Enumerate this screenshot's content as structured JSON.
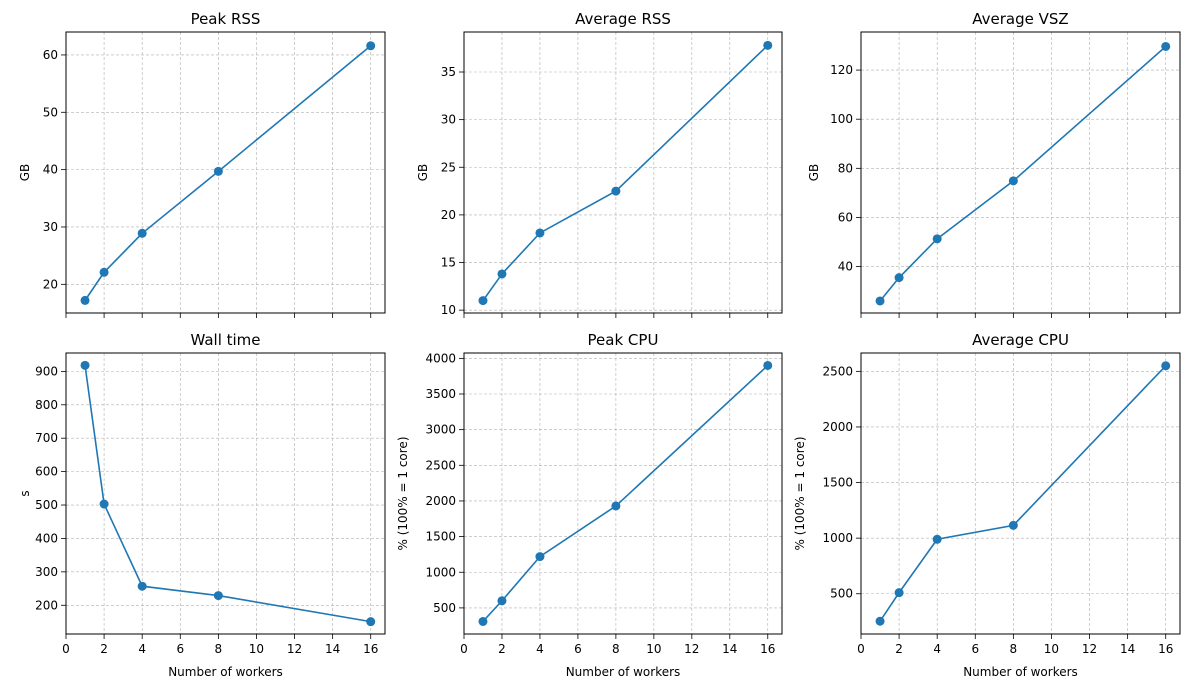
{
  "chart_data": [
    {
      "type": "line",
      "title": "Peak RSS",
      "xlabel": "",
      "ylabel": "GB",
      "x": [
        1,
        2,
        4,
        8,
        16
      ],
      "series": [
        {
          "values": [
            17.2,
            22.1,
            28.9,
            39.7,
            61.6
          ]
        }
      ],
      "xlim": [
        0,
        16.75
      ],
      "ylim": [
        15,
        64
      ],
      "yticks": [
        20,
        30,
        40,
        50,
        60
      ],
      "xticks": [
        0,
        2,
        4,
        6,
        8,
        10,
        12,
        14,
        16
      ],
      "show_xticklabels": false,
      "grid": true
    },
    {
      "type": "line",
      "title": "Average RSS",
      "xlabel": "",
      "ylabel": "GB",
      "x": [
        1,
        2,
        4,
        8,
        16
      ],
      "series": [
        {
          "values": [
            11.0,
            13.8,
            18.1,
            22.5,
            37.8
          ]
        }
      ],
      "xlim": [
        0,
        16.75
      ],
      "ylim": [
        9.7,
        39.2
      ],
      "yticks": [
        10,
        15,
        20,
        25,
        30,
        35
      ],
      "xticks": [
        0,
        2,
        4,
        6,
        8,
        10,
        12,
        14,
        16
      ],
      "show_xticklabels": false,
      "grid": true
    },
    {
      "type": "line",
      "title": "Average VSZ",
      "xlabel": "",
      "ylabel": "GB",
      "x": [
        1,
        2,
        4,
        8,
        16
      ],
      "series": [
        {
          "values": [
            26,
            35.5,
            51.3,
            74.9,
            129.6
          ]
        }
      ],
      "xlim": [
        0,
        16.75
      ],
      "ylim": [
        21.1,
        135.5
      ],
      "yticks": [
        40,
        60,
        80,
        100,
        120
      ],
      "xticks": [
        0,
        2,
        4,
        6,
        8,
        10,
        12,
        14,
        16
      ],
      "show_xticklabels": false,
      "grid": true
    },
    {
      "type": "line",
      "title": "Wall time",
      "xlabel": "Number of workers",
      "ylabel": "s",
      "x": [
        1,
        2,
        4,
        8,
        16
      ],
      "series": [
        {
          "values": [
            918,
            503,
            257,
            229,
            151
          ]
        }
      ],
      "xlim": [
        0,
        16.75
      ],
      "ylim": [
        114,
        955
      ],
      "yticks": [
        200,
        300,
        400,
        500,
        600,
        700,
        800,
        900
      ],
      "xticks": [
        0,
        2,
        4,
        6,
        8,
        10,
        12,
        14,
        16
      ],
      "show_xticklabels": true,
      "grid": true
    },
    {
      "type": "line",
      "title": "Peak CPU",
      "xlabel": "Number of workers",
      "ylabel": "% (100% = 1 core)",
      "x": [
        1,
        2,
        4,
        8,
        16
      ],
      "series": [
        {
          "values": [
            310,
            600,
            1220,
            1930,
            3900
          ]
        }
      ],
      "xlim": [
        0,
        16.75
      ],
      "ylim": [
        134,
        4075
      ],
      "yticks": [
        500,
        1000,
        1500,
        2000,
        2500,
        3000,
        3500,
        4000
      ],
      "xticks": [
        0,
        2,
        4,
        6,
        8,
        10,
        12,
        14,
        16
      ],
      "show_xticklabels": true,
      "grid": true
    },
    {
      "type": "line",
      "title": "Average CPU",
      "xlabel": "Number of workers",
      "ylabel": "% (100% = 1 core)",
      "x": [
        1,
        2,
        4,
        8,
        16
      ],
      "series": [
        {
          "values": [
            253,
            510,
            990,
            1115,
            2550
          ]
        }
      ],
      "xlim": [
        0,
        16.75
      ],
      "ylim": [
        138,
        2665
      ],
      "yticks": [
        500,
        1000,
        1500,
        2000,
        2500
      ],
      "xticks": [
        0,
        2,
        4,
        6,
        8,
        10,
        12,
        14,
        16
      ],
      "show_xticklabels": true,
      "grid": true
    }
  ],
  "colors": {
    "series": "#1f77b4",
    "grid": "#b0b0b0",
    "axes": "#000000"
  }
}
